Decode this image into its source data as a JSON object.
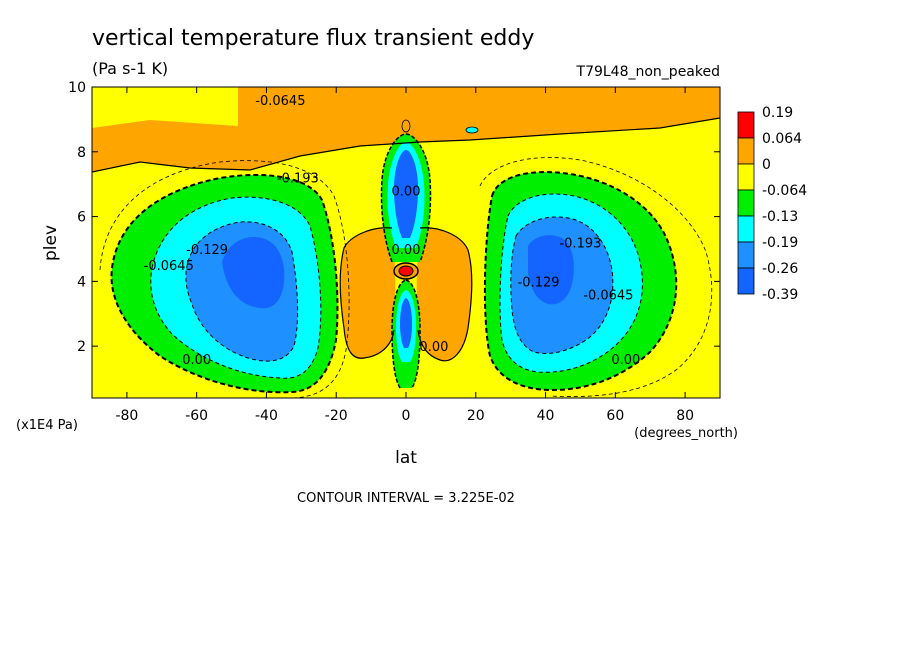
{
  "chart_data": {
    "type": "contour",
    "title": "vertical temperature flux transient eddy",
    "units": "(Pa s-1 K)",
    "dataset": "T79L48_non_peaked",
    "xlabel": "lat",
    "ylabel": "plev",
    "x_units": "(degrees_north)",
    "y_units": "(x1E4 Pa)",
    "xlim": [
      -90,
      90
    ],
    "ylim": [
      10,
      0.4
    ],
    "x_ticks": [
      -80,
      -60,
      -40,
      -20,
      0,
      20,
      40,
      60,
      80
    ],
    "x_tick_labels": [
      "-80",
      "-60",
      "-40",
      "-20",
      "0",
      "20",
      "40",
      "60",
      "80"
    ],
    "y_ticks": [
      2,
      4,
      6,
      8,
      10
    ],
    "y_tick_labels": [
      "2",
      "4",
      "6",
      "8",
      "10"
    ],
    "contour_interval_text": "CONTOUR INTERVAL = 3.225E-02",
    "colorbar": {
      "labels": [
        "0.19",
        "0.064",
        "0",
        "-0.064",
        "-0.13",
        "-0.19",
        "-0.26",
        "-0.39"
      ],
      "colors": [
        "#ff0000",
        "#ffa500",
        "#ffff00",
        "#00ee00",
        "#00ffff",
        "#1e90ff",
        "#1464ff"
      ]
    },
    "contour_labels": [
      {
        "text": "0.00",
        "lat": -60,
        "plev": 1.6
      },
      {
        "text": "0.00",
        "lat": 8,
        "plev": 2.0
      },
      {
        "text": "0.00",
        "lat": 63,
        "plev": 1.6
      },
      {
        "text": "-0.0645",
        "lat": -68,
        "plev": 4.5
      },
      {
        "text": "-0.129",
        "lat": -57,
        "plev": 5.0
      },
      {
        "text": "-0.0645",
        "lat": 58,
        "plev": 3.6
      },
      {
        "text": "-0.129",
        "lat": 38,
        "plev": 4.0
      },
      {
        "text": "-0.193",
        "lat": 50,
        "plev": 5.2
      },
      {
        "text": "-0.193",
        "lat": -31,
        "plev": 7.2
      },
      {
        "text": "-0.0645",
        "lat": -36,
        "plev": 9.6
      },
      {
        "text": "0.00",
        "lat": 0,
        "plev": 5.0
      },
      {
        "text": "0.00",
        "lat": 0,
        "plev": 6.8
      }
    ]
  }
}
